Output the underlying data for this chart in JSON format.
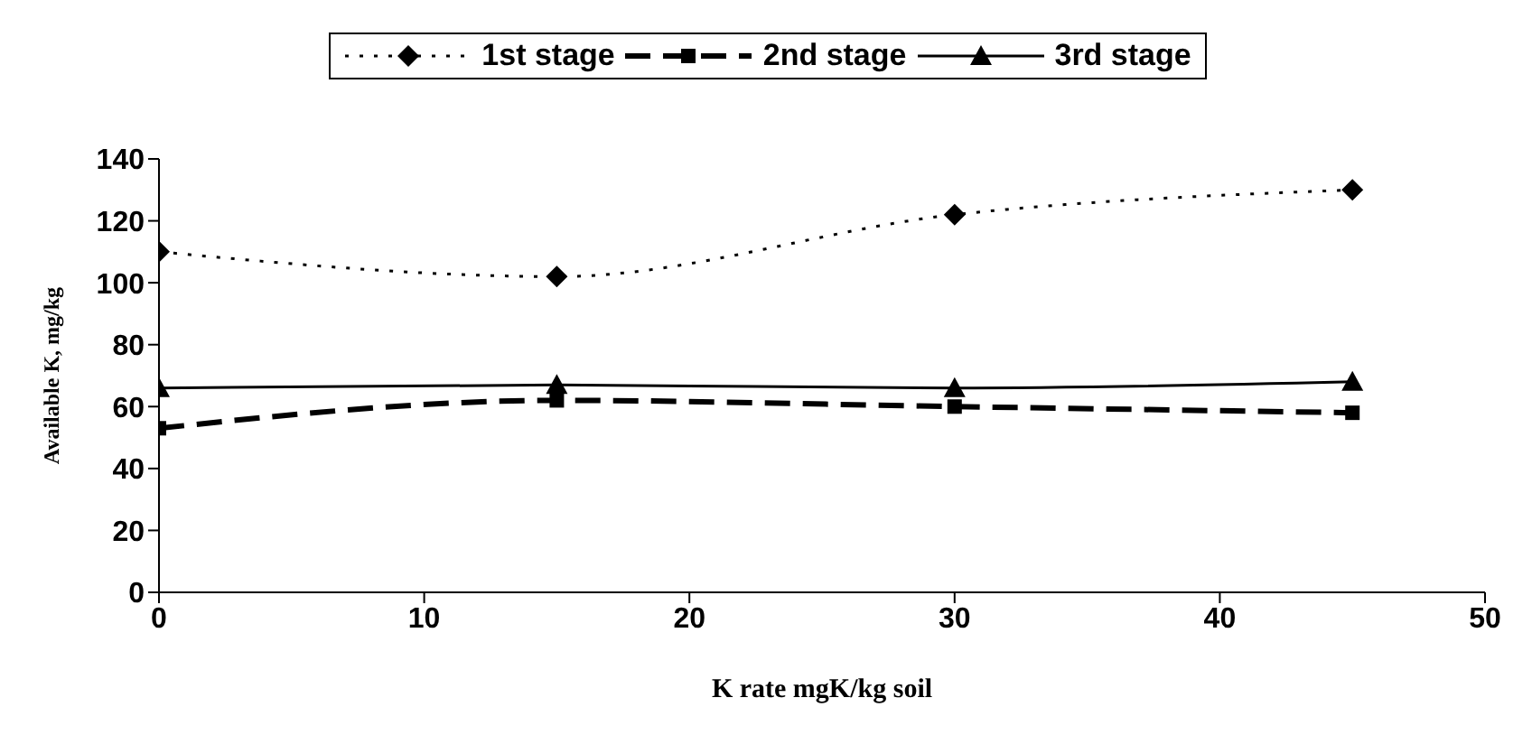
{
  "chart_data": {
    "type": "line",
    "xlabel": "K rate mgK/kg soil",
    "ylabel": "Available K, mg/kg",
    "x": [
      0,
      15,
      30,
      45
    ],
    "series": [
      {
        "name": "1st stage",
        "color": "#000000",
        "values": [
          110,
          102,
          122,
          130
        ],
        "marker": "diamond",
        "line_style": "dotted"
      },
      {
        "name": "2nd stage",
        "color": "#000000",
        "values": [
          53,
          62,
          60,
          58
        ],
        "marker": "square",
        "line_style": "dashed"
      },
      {
        "name": "3rd stage",
        "color": "#000000",
        "values": [
          66,
          67,
          66,
          68
        ],
        "marker": "triangle",
        "line_style": "solid"
      }
    ],
    "xlim": [
      0,
      50
    ],
    "xticks": [
      0,
      10,
      20,
      30,
      40,
      50
    ],
    "ylim": [
      0,
      140
    ],
    "yticks": [
      0,
      20,
      40,
      60,
      80,
      100,
      120,
      140
    ],
    "grid": false,
    "legend": "top"
  }
}
